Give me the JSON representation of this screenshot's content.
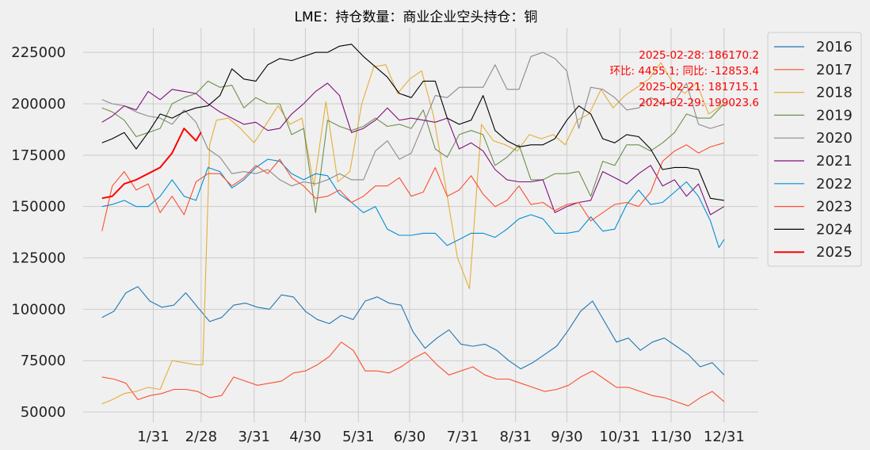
{
  "chart_data": {
    "type": "line",
    "title": "LME：持仓数量：商业企业空头持仓：铜",
    "x_ticks": [
      "1/31",
      "2/28",
      "3/31",
      "4/30",
      "5/31",
      "6/30",
      "7/31",
      "8/31",
      "9/30",
      "10/31",
      "11/30",
      "12/31"
    ],
    "y_ticks": [
      "50000",
      "75000",
      "100000",
      "125000",
      "150000",
      "175000",
      "200000",
      "225000"
    ],
    "ylim": [
      45000,
      237000
    ],
    "xlim": [
      -10,
      385
    ],
    "grid": true,
    "legend_position": "right",
    "annotation_lines": [
      "2025-02-28: 186170.2",
      "环比: 4455.1; 同比: -12853.4",
      "2025-02-21: 181715.1",
      "2024-02-29: 199023.6"
    ],
    "series": [
      {
        "name": "2016",
        "color": "#1f77b4",
        "x": [
          1,
          8,
          15,
          22,
          29,
          36,
          43,
          50,
          57,
          64,
          71,
          78,
          85,
          92,
          99,
          106,
          113,
          120,
          127,
          134,
          141,
          148,
          155,
          162,
          169,
          176,
          183,
          190,
          197,
          204,
          211,
          218,
          225,
          232,
          239,
          246,
          253,
          260,
          267,
          274,
          281,
          288,
          295,
          302,
          309,
          316,
          323,
          330,
          337,
          344,
          351,
          358,
          365
        ],
        "y": [
          96000,
          99000,
          108000,
          111000,
          104000,
          101000,
          102000,
          108000,
          101000,
          94000,
          96000,
          102000,
          103000,
          101000,
          100000,
          107000,
          106000,
          99000,
          95000,
          93000,
          97000,
          95000,
          104000,
          106000,
          103000,
          102000,
          89000,
          81000,
          86000,
          90000,
          83000,
          82000,
          83000,
          80000,
          75000,
          71000,
          74000,
          78000,
          82000,
          90000,
          99000,
          104000,
          94000,
          84000,
          86000,
          80000,
          84000,
          86000,
          82000,
          78000,
          72000,
          74000,
          68000
        ]
      },
      {
        "name": "2017",
        "color": "#fc4f30",
        "x": [
          1,
          8,
          15,
          22,
          29,
          36,
          43,
          50,
          57,
          64,
          71,
          78,
          85,
          92,
          99,
          106,
          113,
          120,
          127,
          134,
          141,
          148,
          155,
          162,
          169,
          176,
          183,
          190,
          197,
          204,
          211,
          218,
          225,
          232,
          239,
          246,
          253,
          260,
          267,
          274,
          281,
          288,
          295,
          302,
          309,
          316,
          323,
          330,
          337,
          344,
          351,
          358,
          365
        ],
        "y": [
          67000,
          66000,
          64000,
          56000,
          58000,
          59000,
          61000,
          61000,
          60000,
          57000,
          58000,
          67000,
          65000,
          63000,
          64000,
          65000,
          69000,
          70000,
          73000,
          77000,
          84000,
          80000,
          70000,
          70000,
          69000,
          72000,
          76000,
          79000,
          73000,
          68000,
          70000,
          72000,
          68000,
          66000,
          66000,
          64000,
          62000,
          60000,
          61000,
          63000,
          67000,
          70000,
          66000,
          62000,
          62000,
          60000,
          58000,
          57000,
          55000,
          53000,
          57000,
          60000,
          55000
        ]
      },
      {
        "name": "2018",
        "color": "#e5ae38",
        "x": [
          1,
          7,
          14,
          21,
          28,
          35,
          42,
          49,
          56,
          60,
          64,
          68,
          75,
          82,
          90,
          97,
          104,
          111,
          118,
          125,
          132,
          139,
          146,
          153,
          160,
          167,
          174,
          181,
          188,
          195,
          202,
          209,
          216,
          223,
          230,
          237,
          244,
          251,
          258,
          265,
          272,
          279,
          286,
          293,
          300,
          307,
          314,
          321,
          328,
          335,
          342,
          349,
          356,
          365
        ],
        "y": [
          54000,
          56000,
          59000,
          60000,
          62000,
          61000,
          75000,
          74000,
          73000,
          73000,
          180000,
          192000,
          193000,
          188000,
          181000,
          190000,
          199000,
          190000,
          193000,
          160000,
          201000,
          162000,
          167000,
          200000,
          218000,
          219000,
          205000,
          212000,
          216000,
          194000,
          160000,
          125000,
          110000,
          190000,
          182000,
          180000,
          177000,
          185000,
          183000,
          185000,
          180000,
          192000,
          195000,
          207000,
          198000,
          204000,
          208000,
          212000,
          220000,
          210000,
          205000,
          210000,
          195000,
          200000
        ]
      },
      {
        "name": "2019",
        "color": "#6d904f",
        "x": [
          1,
          7,
          14,
          21,
          28,
          35,
          42,
          49,
          56,
          63,
          70,
          77,
          84,
          91,
          98,
          105,
          112,
          119,
          126,
          133,
          140,
          147,
          154,
          161,
          168,
          175,
          182,
          189,
          196,
          203,
          210,
          217,
          224,
          231,
          238,
          245,
          252,
          259,
          266,
          273,
          280,
          287,
          294,
          301,
          308,
          315,
          322,
          329,
          336,
          343,
          350,
          357,
          365
        ],
        "y": [
          198000,
          196000,
          192000,
          184000,
          186000,
          188000,
          200000,
          203000,
          205000,
          211000,
          208000,
          209000,
          198000,
          203000,
          200000,
          200000,
          185000,
          188000,
          147000,
          192000,
          189000,
          187000,
          189000,
          193000,
          189000,
          190000,
          188000,
          197000,
          178000,
          174000,
          185000,
          187000,
          185000,
          170000,
          174000,
          180000,
          163000,
          163000,
          166000,
          166000,
          167000,
          155000,
          172000,
          170000,
          180000,
          180000,
          177000,
          181000,
          186000,
          195000,
          193000,
          193000,
          200000
        ]
      },
      {
        "name": "2020",
        "color": "#8b8b8b",
        "x": [
          1,
          7,
          14,
          21,
          28,
          35,
          42,
          49,
          56,
          63,
          70,
          77,
          84,
          91,
          98,
          105,
          112,
          119,
          126,
          133,
          140,
          147,
          154,
          161,
          168,
          175,
          182,
          189,
          196,
          203,
          210,
          217,
          224,
          231,
          238,
          245,
          252,
          259,
          266,
          273,
          280,
          287,
          294,
          301,
          308,
          315,
          322,
          329,
          336,
          343,
          350,
          357,
          365
        ],
        "y": [
          202000,
          200000,
          199000,
          196000,
          194000,
          193000,
          190000,
          197000,
          191000,
          178000,
          174000,
          166000,
          167000,
          166000,
          168000,
          163000,
          160000,
          162000,
          161000,
          163000,
          166000,
          163000,
          163000,
          177000,
          182000,
          173000,
          176000,
          190000,
          204000,
          203000,
          208000,
          208000,
          208000,
          219000,
          207000,
          207000,
          223000,
          225000,
          222000,
          216000,
          188000,
          208000,
          207000,
          203000,
          197000,
          198000,
          203000,
          200000,
          201000,
          210000,
          190000,
          188000,
          190000
        ]
      },
      {
        "name": "2021",
        "color": "#810f7c",
        "x": [
          1,
          7,
          14,
          21,
          28,
          35,
          42,
          49,
          56,
          63,
          70,
          77,
          84,
          91,
          98,
          105,
          112,
          119,
          126,
          133,
          140,
          147,
          154,
          161,
          168,
          175,
          182,
          189,
          196,
          203,
          210,
          217,
          224,
          231,
          238,
          245,
          252,
          259,
          266,
          273,
          280,
          287,
          294,
          301,
          308,
          315,
          322,
          329,
          336,
          343,
          350,
          357,
          365
        ],
        "y": [
          191000,
          194000,
          199000,
          197000,
          206000,
          202000,
          207000,
          206000,
          205000,
          200000,
          196000,
          193000,
          190000,
          191000,
          187000,
          188000,
          195000,
          200000,
          206000,
          210000,
          204000,
          186000,
          188000,
          192000,
          198000,
          192000,
          193000,
          192000,
          191000,
          193000,
          178000,
          181000,
          177000,
          168000,
          163000,
          162000,
          162000,
          163000,
          147000,
          150000,
          152000,
          153000,
          167000,
          164000,
          161000,
          166000,
          170000,
          160000,
          163000,
          155000,
          161000,
          146000,
          150000
        ]
      },
      {
        "name": "2022",
        "color": "#008fd5",
        "x": [
          1,
          7,
          14,
          21,
          28,
          35,
          42,
          49,
          56,
          63,
          70,
          77,
          84,
          91,
          98,
          105,
          112,
          119,
          126,
          133,
          140,
          147,
          154,
          161,
          168,
          175,
          182,
          189,
          196,
          203,
          210,
          217,
          224,
          231,
          238,
          245,
          252,
          259,
          266,
          273,
          280,
          287,
          294,
          301,
          308,
          315,
          322,
          329,
          336,
          343,
          350,
          357,
          362,
          365
        ],
        "y": [
          150000,
          151000,
          153000,
          150000,
          150000,
          155000,
          163000,
          155000,
          153000,
          169000,
          167000,
          159000,
          163000,
          169000,
          173000,
          172000,
          166000,
          163000,
          166000,
          165000,
          156000,
          152000,
          147000,
          150000,
          139000,
          136000,
          136000,
          137000,
          137000,
          131000,
          134000,
          137000,
          137000,
          135000,
          139000,
          144000,
          146000,
          144000,
          137000,
          137000,
          138000,
          145000,
          138000,
          139000,
          151000,
          158000,
          151000,
          152000,
          157000,
          162000,
          155000,
          143000,
          130000,
          134000
        ]
      },
      {
        "name": "2023",
        "color": "#fc4f30",
        "x": [
          1,
          7,
          14,
          21,
          28,
          35,
          42,
          49,
          56,
          63,
          70,
          77,
          84,
          91,
          98,
          105,
          112,
          119,
          126,
          133,
          140,
          147,
          154,
          161,
          168,
          175,
          182,
          189,
          196,
          203,
          210,
          217,
          224,
          231,
          238,
          245,
          252,
          259,
          266,
          273,
          280,
          287,
          294,
          301,
          308,
          315,
          322,
          329,
          336,
          343,
          350,
          357,
          365
        ],
        "y": [
          138000,
          160000,
          167000,
          158000,
          161000,
          147000,
          155000,
          146000,
          162000,
          166000,
          166000,
          160000,
          164000,
          170000,
          166000,
          173000,
          164000,
          160000,
          154000,
          155000,
          158000,
          152000,
          155000,
          160000,
          160000,
          164000,
          155000,
          157000,
          169000,
          155000,
          158000,
          165000,
          156000,
          150000,
          153000,
          160000,
          151000,
          152000,
          148000,
          151000,
          152000,
          143000,
          147000,
          151000,
          152000,
          150000,
          157000,
          172000,
          177000,
          180000,
          176000,
          179000,
          181000
        ]
      },
      {
        "name": "2024",
        "color": "#000000",
        "x": [
          1,
          7,
          14,
          21,
          28,
          35,
          42,
          49,
          56,
          63,
          70,
          77,
          84,
          91,
          98,
          105,
          112,
          119,
          126,
          133,
          140,
          147,
          154,
          161,
          168,
          175,
          182,
          189,
          196,
          203,
          210,
          217,
          224,
          231,
          238,
          245,
          252,
          259,
          266,
          273,
          280,
          287,
          294,
          301,
          308,
          315,
          322,
          329,
          336,
          343,
          350,
          357,
          365
        ],
        "y": [
          181000,
          183000,
          186000,
          178000,
          186000,
          195000,
          193000,
          196000,
          198000,
          199000,
          204000,
          217000,
          212000,
          211000,
          219000,
          222000,
          221000,
          223000,
          225000,
          225000,
          228000,
          229000,
          223000,
          218000,
          213000,
          205000,
          203000,
          211000,
          211000,
          193000,
          190000,
          192000,
          204000,
          187000,
          182000,
          179000,
          180000,
          180000,
          183000,
          192000,
          199000,
          195000,
          183000,
          181000,
          185000,
          184000,
          178000,
          168000,
          169000,
          169000,
          168000,
          154000,
          153000
        ]
      },
      {
        "name": "2025",
        "color": "#ff0000",
        "x": [
          1,
          7,
          14,
          21,
          28,
          35,
          42,
          49,
          56,
          59
        ],
        "y": [
          154000,
          155000,
          161000,
          163000,
          166000,
          169000,
          176000,
          188000,
          182000,
          186170.2
        ]
      }
    ]
  }
}
